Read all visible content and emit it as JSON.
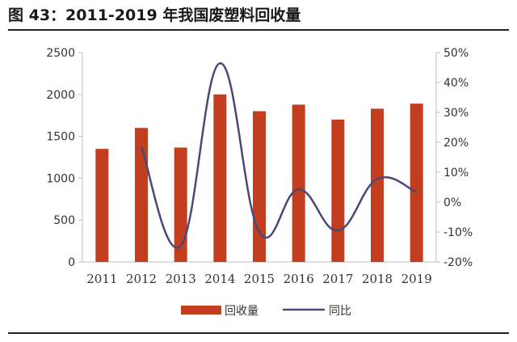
{
  "title": "图 43：2011-2019 年我国废塑料回收量",
  "colors": {
    "bar": "#c23e1f",
    "line": "#4a4876",
    "axis": "#bfbfbf"
  },
  "chart_data": {
    "type": "bar",
    "categories": [
      "2011",
      "2012",
      "2013",
      "2014",
      "2015",
      "2016",
      "2017",
      "2018",
      "2019"
    ],
    "series": [
      {
        "name": "回收量",
        "type": "bar",
        "axis": "left",
        "values": [
          1350,
          1600,
          1366,
          2000,
          1800,
          1878,
          1700,
          1830,
          1890
        ]
      },
      {
        "name": "同比",
        "type": "line",
        "axis": "right",
        "smooth": true,
        "values": [
          null,
          18.5,
          -14.6,
          46.4,
          -10.0,
          4.3,
          -9.5,
          7.7,
          3.3
        ]
      }
    ],
    "y_left": {
      "range": [
        0,
        2500
      ],
      "ticks": [
        "0",
        "500",
        "1000",
        "1500",
        "2000",
        "2500"
      ]
    },
    "y_right": {
      "range": [
        -20,
        50
      ],
      "ticks": [
        "-20%",
        "-10%",
        "0%",
        "10%",
        "20%",
        "30%",
        "40%",
        "50%"
      ]
    },
    "grid": false,
    "legend": "bottom"
  }
}
